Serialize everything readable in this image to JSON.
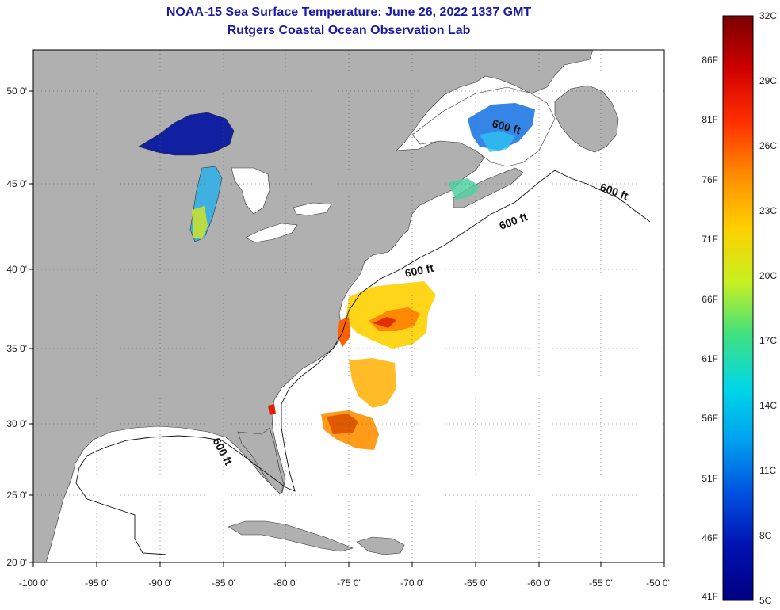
{
  "title": "NOAA-15 Sea Surface Temperature:  June 26, 2022 1337 GMT",
  "subtitle": "Rutgers Coastal Ocean Observation Lab",
  "axes": {
    "lon_ticks": [
      "-100 0'",
      "-95 0'",
      "-90 0'",
      "-85 0'",
      "-80 0'",
      "-75 0'",
      "-70 0'",
      "-65 0'",
      "-60 0'",
      "-55 0'",
      "-50 0'"
    ],
    "lat_ticks": [
      "50 0'",
      "45 0'",
      "40 0'",
      "35 0'",
      "30 0'",
      "25 0'",
      "20 0'"
    ],
    "lon_range": [
      -100,
      -50
    ],
    "lat_range": [
      20,
      52.5
    ],
    "grid": "dotted"
  },
  "contour_labels": [
    "600 ft",
    "600 ft",
    "600 ft",
    "600 ft",
    "600 ft"
  ],
  "colorbar": {
    "celsius": [
      "32C",
      "29C",
      "26C",
      "23C",
      "20C",
      "17C",
      "14C",
      "11C",
      "8C",
      "5C"
    ],
    "fahrenheit": [
      "86F",
      "81F",
      "76F",
      "71F",
      "66F",
      "61F",
      "56F",
      "51F",
      "46F",
      "41F"
    ],
    "colors": [
      "#7a0000",
      "#d00000",
      "#ff3000",
      "#ff8c00",
      "#ffd000",
      "#c8f020",
      "#40e080",
      "#00d8e8",
      "#00a0f0",
      "#0050e0",
      "#0010b0",
      "#000080"
    ]
  },
  "colors": {
    "land": "#b0b0b0",
    "ocean": "#ffffff",
    "title": "#1a1aa8"
  }
}
